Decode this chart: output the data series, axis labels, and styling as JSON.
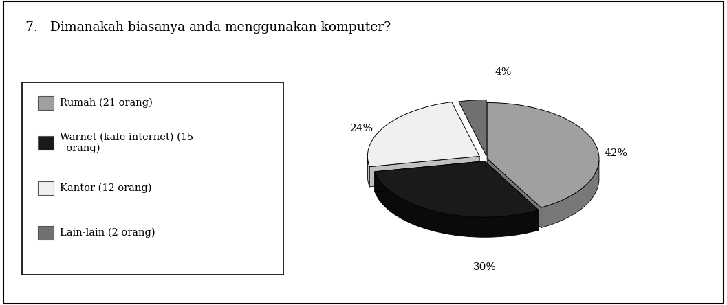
{
  "title": "7.   Dimanakah biasanya anda menggunakan komputer?",
  "slices": [
    42,
    30,
    24,
    4
  ],
  "labels": [
    "42%",
    "30%",
    "24%",
    "4%"
  ],
  "legend_labels": [
    "Rumah (21 orang)",
    "Warnet (kafe internet) (15\n  orang)",
    "Kantor (12 orang)",
    "Lain-lain (2 orang)"
  ],
  "colors": [
    "#a0a0a0",
    "#1a1a1a",
    "#f0f0f0",
    "#707070"
  ],
  "side_colors": [
    "#787878",
    "#0a0a0a",
    "#c0c0c0",
    "#505050"
  ],
  "background_color": "#ffffff",
  "startangle": 90,
  "explode": [
    0.0,
    0.05,
    0.08,
    0.05
  ]
}
